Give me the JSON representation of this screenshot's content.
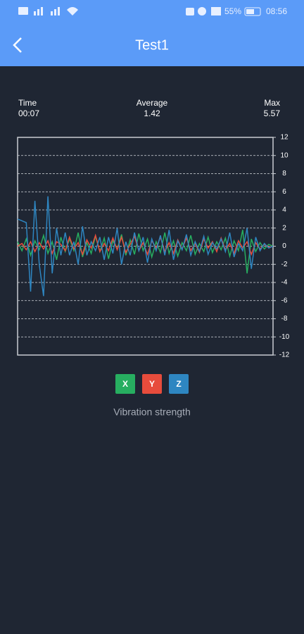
{
  "status_bar": {
    "battery": "55%",
    "time": "08:56"
  },
  "header": {
    "title": "Test1"
  },
  "stats": [
    {
      "label": "Time",
      "value": "00:07"
    },
    {
      "label": "Average",
      "value": 1.42
    },
    {
      "label": "Max",
      "value": 5.57
    }
  ],
  "chart_data": {
    "type": "line",
    "ylim": [
      -12,
      12
    ],
    "yticks": [
      -12,
      -10,
      -8,
      -6,
      -4,
      -2,
      0,
      2,
      4,
      6,
      8,
      10,
      12
    ],
    "grid": true,
    "series": [
      {
        "name": "X",
        "color": "#27ae60",
        "values": [
          0.5,
          -0.5,
          0.8,
          -1,
          0.6,
          -0.4,
          1.2,
          -0.8,
          0.5,
          -1.5,
          1,
          -0.6,
          0.8,
          -0.5,
          1.5,
          -1.2,
          0.4,
          -0.8,
          1.1,
          -0.6,
          0.9,
          -1.4,
          0.6,
          -0.3,
          1.3,
          -1,
          0.7,
          -0.9,
          1.4,
          -0.5,
          0.8,
          -1.2,
          0.5,
          -0.7,
          1.5,
          -0.8,
          0.6,
          -1.1,
          0.4,
          -0.5,
          1.2,
          -0.9,
          0.3,
          -0.6,
          1,
          -0.7,
          0.5,
          -0.4,
          0.9,
          -1.1,
          0.6,
          -0.5,
          1.8,
          -3,
          0.8,
          -0.6,
          0.4,
          -0.3,
          0.2,
          0
        ]
      },
      {
        "name": "Y",
        "color": "#e74c3c",
        "values": [
          0,
          0.3,
          -0.4,
          0.5,
          -0.6,
          0.4,
          -0.3,
          0.6,
          -0.8,
          0.5,
          0.2,
          -0.5,
          1,
          -0.3,
          0.4,
          -0.9,
          0.7,
          -0.2,
          1.2,
          -0.6,
          0.3,
          -0.5,
          0.9,
          -0.4,
          1,
          -0.7,
          0.2,
          1.1,
          -0.5,
          0.4,
          -0.9,
          0.6,
          -0.2,
          1,
          -0.6,
          0.4,
          -0.8,
          0.7,
          -0.3,
          0.9,
          -0.5,
          0.3,
          -0.7,
          0.8,
          -0.2,
          0.5,
          -0.6,
          0.9,
          -0.4,
          0.3,
          -0.8,
          0.6,
          -0.2,
          0.5,
          -0.9,
          0.4,
          -0.3,
          0.2,
          -0.1,
          0
        ]
      },
      {
        "name": "Z",
        "color": "#2e86c1",
        "values": [
          3,
          2.8,
          2.6,
          -5,
          5,
          -2,
          -5.5,
          5.5,
          -3,
          2,
          -1,
          1.5,
          -1,
          0.5,
          -2,
          2.2,
          -1,
          0.5,
          -0.5,
          1,
          -1.5,
          1,
          -0.8,
          2,
          -2,
          0.5,
          -1,
          1.5,
          -0.5,
          1,
          -1.8,
          0.8,
          -0.5,
          1.2,
          -1,
          1.8,
          -1.5,
          0.6,
          -0.4,
          1.3,
          -1,
          0.5,
          -0.6,
          1.1,
          -0.9,
          0.4,
          -0.3,
          0.8,
          -0.6,
          1.5,
          -1.2,
          0.3,
          -0.5,
          2,
          -2.5,
          1,
          -0.5,
          0.3,
          -0.2,
          0
        ]
      }
    ]
  },
  "caption": "Vibration strength"
}
